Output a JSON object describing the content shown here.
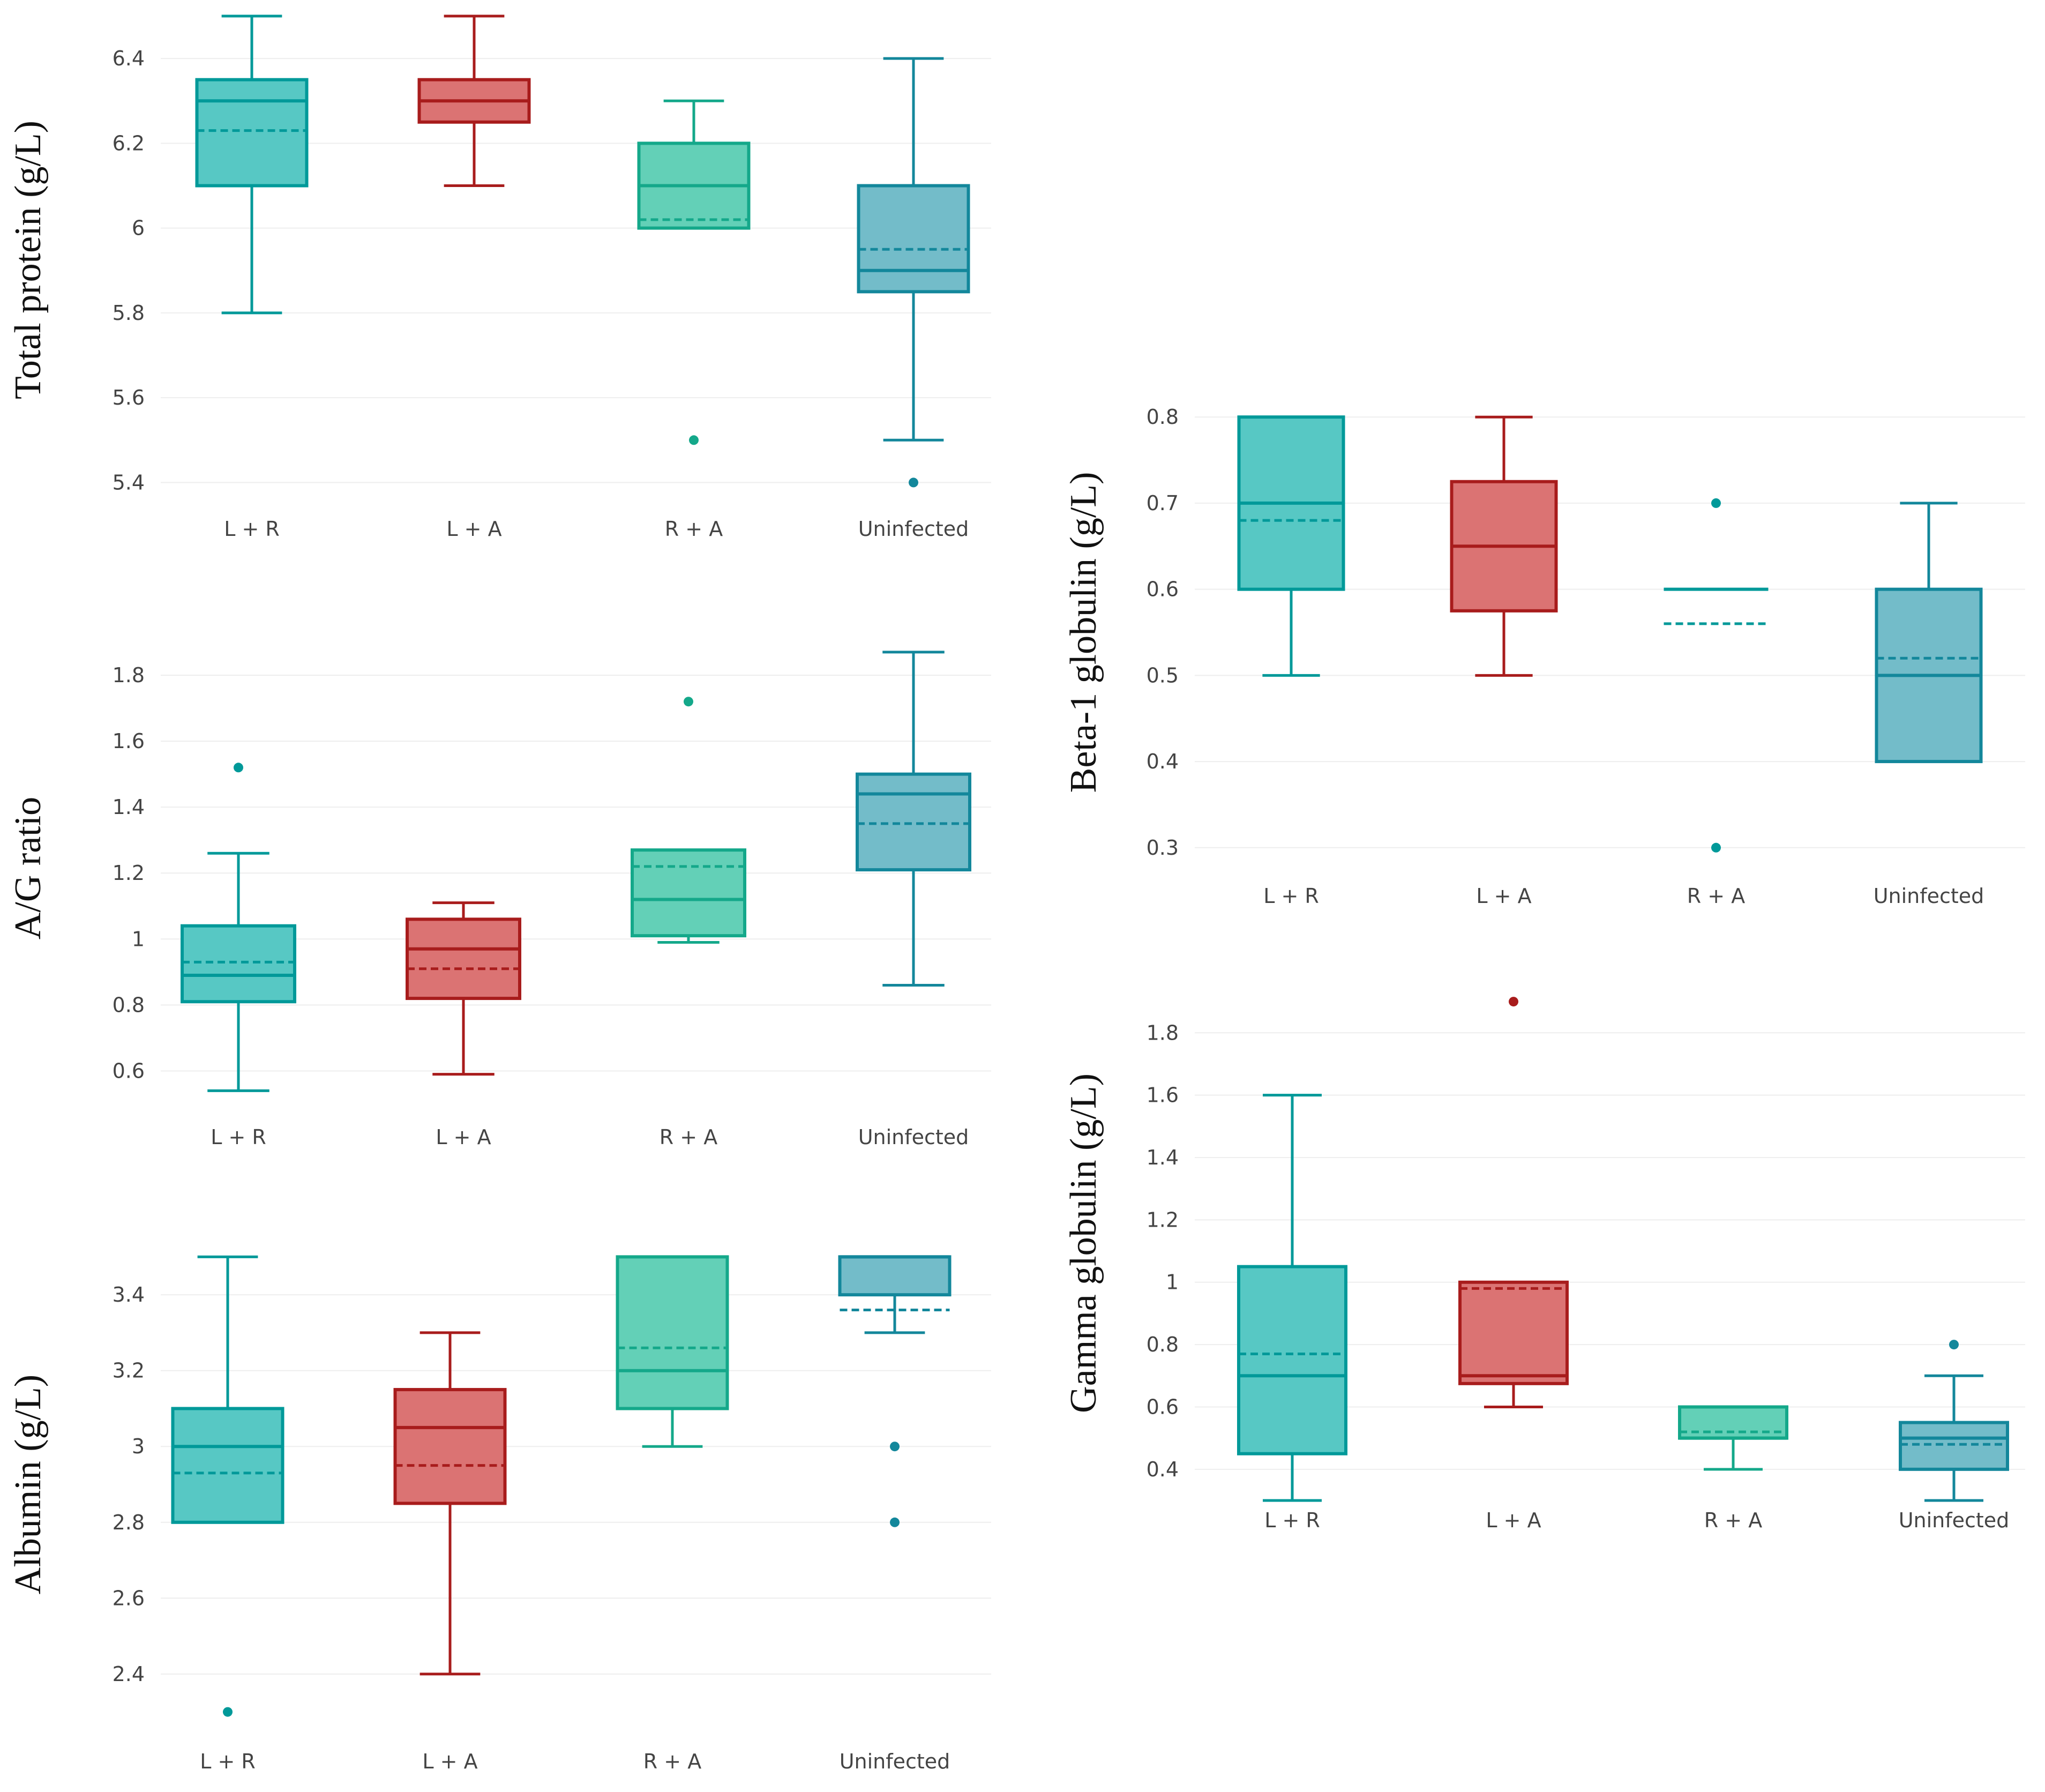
{
  "colors": {
    "teal": "#009999",
    "teal_fill": "#4ec5c1",
    "red": "#a81c1c",
    "red_fill": "#d96c6c",
    "green": "#14a88a",
    "green_fill": "#5bcdb3",
    "blue": "#13879b",
    "blue_fill": "#6bb8c6",
    "grid": "#eeeeee"
  },
  "chart_data": [
    {
      "id": "p1",
      "type": "box",
      "title": "",
      "ylabel": "Total protein (g/L)",
      "xlabel": "",
      "ylim": [
        5.35,
        6.5
      ],
      "yticks": [
        5.4,
        5.6,
        5.8,
        6.0,
        6.2,
        6.4
      ],
      "ytick_labels": [
        "5.4",
        "5.6",
        "5.8",
        "6",
        "6.2",
        "6.4"
      ],
      "categories": [
        "L + R",
        "L + A",
        "R + A",
        "Uninfected"
      ],
      "boxes": [
        {
          "min": 5.8,
          "q1": 6.1,
          "median": 6.3,
          "q3": 6.35,
          "max": 6.5,
          "mean": 6.23,
          "outliers": [],
          "color": "teal"
        },
        {
          "min": 6.1,
          "q1": 6.25,
          "median": 6.3,
          "q3": 6.35,
          "max": 6.5,
          "mean": 6.3,
          "outliers": [],
          "color": "red"
        },
        {
          "min": 6.0,
          "q1": 6.0,
          "median": 6.1,
          "q3": 6.2,
          "max": 6.3,
          "mean": 6.02,
          "outliers": [
            5.5
          ],
          "color": "green"
        },
        {
          "min": 5.5,
          "q1": 5.85,
          "median": 5.9,
          "q3": 6.1,
          "max": 6.4,
          "mean": 5.95,
          "outliers": [
            5.4
          ],
          "color": "blue"
        }
      ]
    },
    {
      "id": "p2",
      "type": "box",
      "title": "",
      "ylabel": "A/G ratio",
      "xlabel": "",
      "ylim": [
        0.5,
        1.93
      ],
      "yticks": [
        0.6,
        0.8,
        1.0,
        1.2,
        1.4,
        1.6,
        1.8
      ],
      "ytick_labels": [
        "0.6",
        "0.8",
        "1",
        "1.2",
        "1.4",
        "1.6",
        "1.8"
      ],
      "categories": [
        "L + R",
        "L + A",
        "R + A",
        "Uninfected"
      ],
      "boxes": [
        {
          "min": 0.54,
          "q1": 0.81,
          "median": 0.89,
          "q3": 1.04,
          "max": 1.26,
          "mean": 0.93,
          "outliers": [
            1.52
          ],
          "color": "teal"
        },
        {
          "min": 0.59,
          "q1": 0.82,
          "median": 0.97,
          "q3": 1.06,
          "max": 1.11,
          "mean": 0.91,
          "outliers": [],
          "color": "red"
        },
        {
          "min": 0.99,
          "q1": 1.01,
          "median": 1.12,
          "q3": 1.27,
          "max": 1.27,
          "mean": 1.22,
          "outliers": [
            1.72
          ],
          "color": "green"
        },
        {
          "min": 0.86,
          "q1": 1.21,
          "median": 1.44,
          "q3": 1.5,
          "max": 1.87,
          "mean": 1.35,
          "outliers": [],
          "color": "blue"
        }
      ]
    },
    {
      "id": "p3",
      "type": "box",
      "title": "",
      "ylabel": "Albumin (g/L)",
      "xlabel": "",
      "ylim": [
        2.25,
        3.55
      ],
      "yticks": [
        2.4,
        2.6,
        2.8,
        3.0,
        3.2,
        3.4
      ],
      "ytick_labels": [
        "2.4",
        "2.6",
        "2.8",
        "3",
        "3.2",
        "3.4"
      ],
      "categories": [
        "L + R",
        "L + A",
        "R + A",
        "Uninfected"
      ],
      "boxes": [
        {
          "min": 2.8,
          "q1": 2.8,
          "median": 3.0,
          "q3": 3.1,
          "max": 3.5,
          "mean": 2.93,
          "outliers": [
            2.3
          ],
          "color": "teal"
        },
        {
          "min": 2.4,
          "q1": 2.85,
          "median": 3.05,
          "q3": 3.15,
          "max": 3.3,
          "mean": 2.95,
          "outliers": [],
          "color": "red"
        },
        {
          "min": 3.0,
          "q1": 3.1,
          "median": 3.2,
          "q3": 3.5,
          "max": 3.5,
          "mean": 3.26,
          "outliers": [],
          "color": "green"
        },
        {
          "min": 3.3,
          "q1": 3.4,
          "median": 3.5,
          "q3": 3.5,
          "max": 3.5,
          "mean": 3.36,
          "outliers": [
            3.0,
            2.8
          ],
          "color": "blue"
        }
      ]
    },
    {
      "id": "p4",
      "type": "box",
      "title": "",
      "ylabel": "Beta-1  globulin (g/L)",
      "xlabel": "",
      "ylim": [
        0.27,
        0.83
      ],
      "yticks": [
        0.3,
        0.4,
        0.5,
        0.6,
        0.7,
        0.8
      ],
      "ytick_labels": [
        "0.3",
        "0.4",
        "0.5",
        "0.6",
        "0.7",
        "0.8"
      ],
      "categories": [
        "L + R",
        "L + A",
        "R + A",
        "Uninfected"
      ],
      "boxes": [
        {
          "min": 0.5,
          "q1": 0.6,
          "median": 0.7,
          "q3": 0.8,
          "max": 0.8,
          "mean": 0.68,
          "outliers": [],
          "color": "teal"
        },
        {
          "min": 0.5,
          "q1": 0.575,
          "median": 0.65,
          "q3": 0.725,
          "max": 0.8,
          "mean": 0.65,
          "outliers": [],
          "color": "red"
        },
        {
          "min": 0.6,
          "q1": 0.6,
          "median": 0.6,
          "q3": 0.6,
          "max": 0.6,
          "mean": 0.56,
          "outliers": [
            0.7,
            0.3
          ],
          "color": "teal"
        },
        {
          "min": 0.4,
          "q1": 0.4,
          "median": 0.5,
          "q3": 0.6,
          "max": 0.7,
          "mean": 0.52,
          "outliers": [],
          "color": "blue"
        }
      ]
    },
    {
      "id": "p5",
      "type": "box",
      "title": "",
      "ylabel": "Gamma globulin (g/L)",
      "xlabel": "",
      "ylim": [
        0.3,
        1.95
      ],
      "yticks": [
        0.4,
        0.6,
        0.8,
        1.0,
        1.2,
        1.4,
        1.6,
        1.8
      ],
      "ytick_labels": [
        "0.4",
        "0.6",
        "0.8",
        "1",
        "1.2",
        "1.4",
        "1.6",
        "1.8"
      ],
      "categories": [
        "L + R",
        "L + A",
        "R + A",
        "Uninfected"
      ],
      "boxes": [
        {
          "min": 0.3,
          "q1": 0.45,
          "median": 0.7,
          "q3": 1.05,
          "max": 1.6,
          "mean": 0.77,
          "outliers": [],
          "color": "teal"
        },
        {
          "min": 0.6,
          "q1": 0.675,
          "median": 0.7,
          "q3": 1.0,
          "max": 1.0,
          "mean": 0.98,
          "outliers": [
            1.9
          ],
          "color": "red"
        },
        {
          "min": 0.4,
          "q1": 0.5,
          "median": 0.5,
          "q3": 0.6,
          "max": 0.6,
          "mean": 0.52,
          "outliers": [],
          "color": "green"
        },
        {
          "min": 0.3,
          "q1": 0.4,
          "median": 0.5,
          "q3": 0.55,
          "max": 0.7,
          "mean": 0.48,
          "outliers": [
            0.8
          ],
          "color": "blue"
        }
      ]
    }
  ]
}
